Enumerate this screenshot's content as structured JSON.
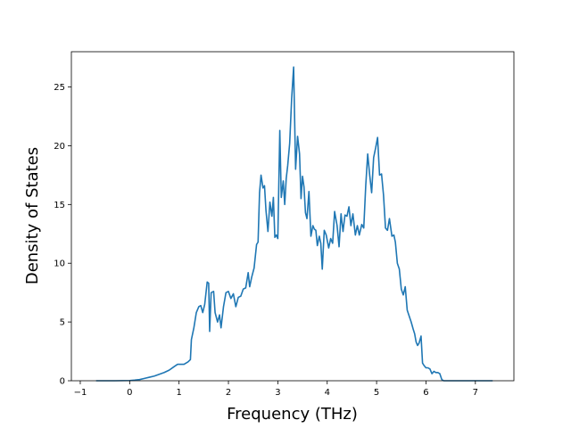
{
  "chart_data": {
    "type": "line",
    "xlabel": "Frequency (THz)",
    "ylabel": "Density of States",
    "xlim": [
      -1.18,
      7.78
    ],
    "ylim": [
      0,
      28
    ],
    "xticks": [
      -1,
      0,
      1,
      2,
      3,
      4,
      5,
      6,
      7
    ],
    "xtick_labels": [
      "−1",
      "0",
      "1",
      "2",
      "3",
      "4",
      "5",
      "6",
      "7"
    ],
    "yticks": [
      0,
      5,
      10,
      15,
      20,
      25
    ],
    "ytick_labels": [
      "0",
      "5",
      "10",
      "15",
      "20",
      "25"
    ],
    "grid": false,
    "line_color": "#1f77b4",
    "series": [
      {
        "x": [
          -0.68,
          -0.3,
          0.0,
          0.1,
          0.2,
          0.3,
          0.4,
          0.5,
          0.6,
          0.7,
          0.8,
          0.9,
          0.97,
          1.02,
          1.1,
          1.18,
          1.23,
          1.25,
          1.3,
          1.35,
          1.4,
          1.44,
          1.48,
          1.52,
          1.57,
          1.6,
          1.62,
          1.65,
          1.7,
          1.73,
          1.78,
          1.82,
          1.85,
          1.9,
          1.95,
          2.0,
          2.05,
          2.1,
          2.15,
          2.2,
          2.25,
          2.3,
          2.35,
          2.4,
          2.43,
          2.47,
          2.52,
          2.57,
          2.6,
          2.63,
          2.66,
          2.7,
          2.73,
          2.76,
          2.8,
          2.84,
          2.88,
          2.91,
          2.94,
          2.97,
          3.0,
          3.04,
          3.07,
          3.11,
          3.14,
          3.17,
          3.2,
          3.24,
          3.28,
          3.32,
          3.36,
          3.4,
          3.44,
          3.47,
          3.5,
          3.53,
          3.56,
          3.59,
          3.63,
          3.67,
          3.71,
          3.74,
          3.77,
          3.8,
          3.84,
          3.87,
          3.9,
          3.94,
          3.98,
          4.03,
          4.07,
          4.11,
          4.15,
          4.2,
          4.24,
          4.28,
          4.32,
          4.36,
          4.4,
          4.44,
          4.48,
          4.52,
          4.57,
          4.61,
          4.65,
          4.7,
          4.74,
          4.78,
          4.82,
          4.86,
          4.9,
          4.94,
          4.98,
          5.02,
          5.06,
          5.1,
          5.14,
          5.18,
          5.22,
          5.26,
          5.31,
          5.35,
          5.38,
          5.42,
          5.46,
          5.5,
          5.54,
          5.58,
          5.62,
          5.66,
          5.7,
          5.74,
          5.77,
          5.8,
          5.83,
          5.86,
          5.9,
          5.93,
          5.96,
          6.0,
          6.04,
          6.08,
          6.12,
          6.16,
          6.2,
          6.24,
          6.28,
          6.32,
          6.36,
          6.4,
          6.44,
          6.48,
          6.52,
          6.56,
          6.6,
          6.64,
          6.68,
          6.72,
          6.8,
          7.0,
          7.35
        ],
        "y": [
          0,
          0,
          0.02,
          0.05,
          0.1,
          0.2,
          0.3,
          0.4,
          0.55,
          0.7,
          0.9,
          1.2,
          1.4,
          1.4,
          1.4,
          1.6,
          1.8,
          3.5,
          4.5,
          5.8,
          6.3,
          6.4,
          5.8,
          6.5,
          8.4,
          8.3,
          4.2,
          7.5,
          7.6,
          5.8,
          5.0,
          5.6,
          4.5,
          6.3,
          7.5,
          7.6,
          7.0,
          7.4,
          6.3,
          7.1,
          7.2,
          7.8,
          7.9,
          9.2,
          8.0,
          8.8,
          9.6,
          11.6,
          11.8,
          16.0,
          17.5,
          16.4,
          16.6,
          14.5,
          12.7,
          15.2,
          14.0,
          15.6,
          12.2,
          12.4,
          12.1,
          21.3,
          15.6,
          17.0,
          15.0,
          17.2,
          18.3,
          20.2,
          24.0,
          26.7,
          18.0,
          20.8,
          19.3,
          15.5,
          17.4,
          16.5,
          14.3,
          13.8,
          16.1,
          12.3,
          13.2,
          12.9,
          12.8,
          11.5,
          12.3,
          11.7,
          9.5,
          12.8,
          12.4,
          11.3,
          12.1,
          11.7,
          14.4,
          13.2,
          11.4,
          14.2,
          12.7,
          14.1,
          14.0,
          14.8,
          13.2,
          14.2,
          12.4,
          13.2,
          12.4,
          13.3,
          13.0,
          16.6,
          19.3,
          17.5,
          16.0,
          19.0,
          19.8,
          20.7,
          17.5,
          17.6,
          15.8,
          13.0,
          12.8,
          13.8,
          12.3,
          12.4,
          11.8,
          10.0,
          9.5,
          7.8,
          7.3,
          8.0,
          6.0,
          5.5,
          5.0,
          4.4,
          4.0,
          3.3,
          3.0,
          3.2,
          3.8,
          1.5,
          1.3,
          1.1,
          1.1,
          1.0,
          0.6,
          0.8,
          0.7,
          0.7,
          0.6,
          0.1,
          0.0,
          0.0,
          0.0,
          0.0,
          0.0,
          0.0,
          0.0,
          0.0,
          0.0,
          0.0,
          0.0,
          0.0,
          0.0
        ]
      }
    ]
  }
}
